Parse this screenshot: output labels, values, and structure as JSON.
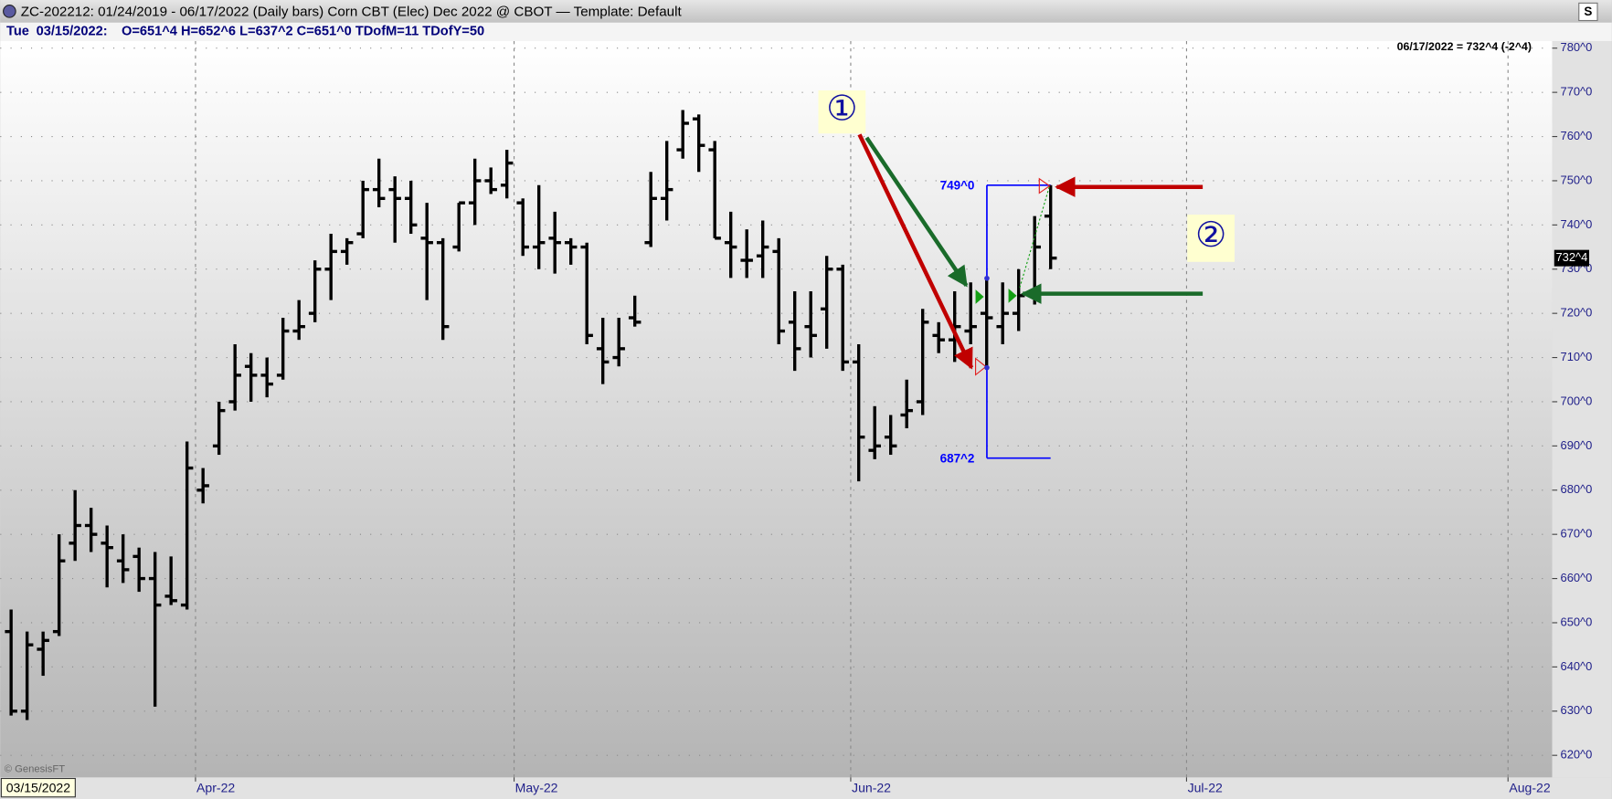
{
  "header": {
    "title": "ZC-202212:  01/24/2019 - 06/17/2022  (Daily bars)   Corn CBT (Elec) Dec 2022 @ CBOT  —  Template: Default",
    "button": "S"
  },
  "info": {
    "day": "Tue",
    "date": "03/15/2022:",
    "values": "O=651^4  H=652^6  L=637^2  C=651^0  TDofM=11  TDofY=50"
  },
  "chart_data": {
    "type": "ohlc",
    "last_label": "06/17/2022 = 732^4 (-2^4)",
    "open": [
      648,
      630,
      644,
      648,
      668,
      672,
      668,
      664,
      665,
      660,
      656,
      654,
      680,
      690,
      700,
      708,
      706,
      706,
      716,
      720,
      730,
      734,
      738,
      748,
      748,
      746,
      737,
      736,
      735,
      745,
      750,
      749,
      745,
      735,
      737,
      736,
      735,
      712,
      710,
      719,
      736,
      746,
      757,
      764,
      757,
      736,
      732,
      733,
      734,
      718,
      717,
      721,
      730,
      709,
      689,
      692,
      697,
      700,
      715,
      714,
      716,
      720,
      717,
      720,
      724,
      742
    ],
    "high": [
      653,
      648,
      648,
      670,
      680,
      676,
      672,
      670,
      667,
      666,
      665,
      691,
      685,
      700,
      713,
      711,
      710,
      719,
      723,
      732,
      738,
      737,
      750,
      755,
      751,
      750,
      745,
      737,
      745,
      755,
      753,
      757,
      746,
      749,
      743,
      737,
      736,
      719,
      719,
      724,
      752,
      759,
      766,
      765,
      759,
      743,
      739,
      741,
      737,
      725,
      725,
      733,
      731,
      713,
      699,
      697,
      705,
      721,
      718,
      725,
      727,
      728,
      727,
      730,
      742,
      749
    ],
    "low": [
      629,
      628,
      638,
      647,
      664,
      666,
      658,
      659,
      657,
      631,
      654,
      653,
      677,
      688,
      698,
      700,
      701,
      705,
      714,
      718,
      723,
      731,
      737,
      744,
      736,
      738,
      723,
      714,
      734,
      740,
      747,
      746,
      733,
      730,
      729,
      731,
      713,
      704,
      708,
      717,
      735,
      741,
      755,
      752,
      737,
      728,
      728,
      728,
      713,
      707,
      710,
      712,
      707,
      682,
      687,
      688,
      694,
      697,
      711,
      709,
      713,
      708,
      713,
      716,
      722,
      730
    ],
    "close": [
      630,
      645,
      646,
      664,
      672,
      670,
      667,
      662,
      660,
      654,
      655,
      685,
      681,
      698,
      706,
      706,
      704,
      716,
      717,
      730,
      734,
      736,
      748,
      746,
      746,
      740,
      736,
      717,
      745,
      750,
      748,
      754,
      735,
      736,
      736,
      735,
      715,
      709,
      712,
      718,
      746,
      748,
      763,
      758,
      737,
      735,
      732,
      735,
      716,
      712,
      715,
      730,
      709,
      692,
      690,
      690,
      698,
      718,
      714,
      717,
      717,
      719,
      720,
      724,
      735,
      732.5
    ],
    "color": "#000000",
    "xlim": [
      -0.68,
      96.36
    ],
    "xticks": [
      {
        "value": 11.53,
        "label": "Apr-22"
      },
      {
        "value": 31.45,
        "label": "May-22"
      },
      {
        "value": 52.5,
        "label": "Jun-22"
      },
      {
        "value": 73.5,
        "label": "Jul-22"
      },
      {
        "value": 93.6,
        "label": "Aug-22"
      }
    ],
    "ylim": [
      615,
      781.6
    ],
    "yticks": [
      {
        "value": 620,
        "label": "620^0"
      },
      {
        "value": 630,
        "label": "630^0"
      },
      {
        "value": 640,
        "label": "640^0"
      },
      {
        "value": 650,
        "label": "650^0"
      },
      {
        "value": 660,
        "label": "660^0"
      },
      {
        "value": 670,
        "label": "670^0"
      },
      {
        "value": 680,
        "label": "680^0"
      },
      {
        "value": 690,
        "label": "690^0"
      },
      {
        "value": 700,
        "label": "700^0"
      },
      {
        "value": 710,
        "label": "710^0"
      },
      {
        "value": 720,
        "label": "720^0"
      },
      {
        "value": 730,
        "label": "730^0"
      },
      {
        "value": 740,
        "label": "740^0"
      },
      {
        "value": 750,
        "label": "750^0"
      },
      {
        "value": 760,
        "label": "760^0"
      },
      {
        "value": 770,
        "label": "770^0"
      },
      {
        "value": 780,
        "label": "780^0"
      }
    ],
    "grid": true,
    "last_price": {
      "value": 732.5,
      "label": "732^4"
    },
    "levels": [
      {
        "value": 749,
        "label": "749^0"
      },
      {
        "value": 687.25,
        "label": "687^2"
      }
    ],
    "level_color": "#0000ff",
    "callouts": [
      "①",
      "②"
    ],
    "watermark": "© GenesisFT",
    "cursor_date": "03/15/2022"
  }
}
